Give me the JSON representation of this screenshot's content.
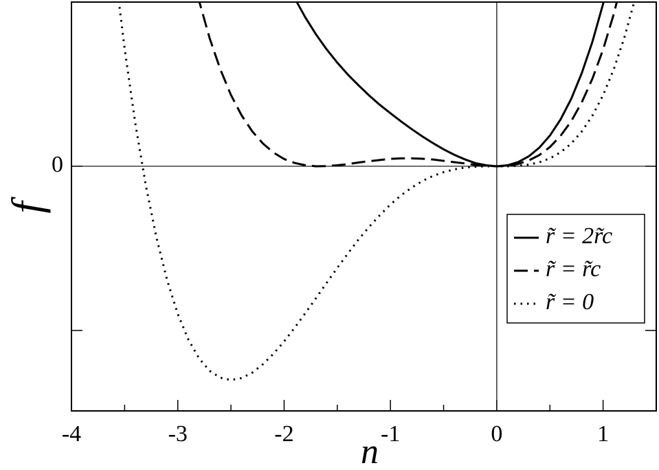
{
  "chart_data": {
    "type": "line",
    "x_label": "n",
    "y_label": "f",
    "x": [
      -3.6,
      -3.5,
      -3.4,
      -3.3,
      -3.2,
      -3.1,
      -3.0,
      -2.9,
      -2.8,
      -2.7,
      -2.6,
      -2.5,
      -2.4,
      -2.3,
      -2.2,
      -2.1,
      -2.0,
      -1.9,
      -1.8,
      -1.7,
      -1.6,
      -1.5,
      -1.4,
      -1.3,
      -1.2,
      -1.1,
      -1.0,
      -0.9,
      -0.8,
      -0.7,
      -0.6,
      -0.5,
      -0.4,
      -0.3,
      -0.2,
      -0.1,
      0,
      0.1,
      0.2,
      0.3,
      0.4,
      0.5,
      0.6,
      0.7,
      0.8,
      0.9,
      1.0,
      1.1,
      1.2,
      1.3,
      1.4
    ],
    "series": [
      {
        "name": "r̃ = 2r̃c",
        "color": "#000000",
        "dash": "solid",
        "values": [
          null,
          null,
          null,
          null,
          null,
          null,
          null,
          null,
          null,
          null,
          null,
          null,
          null,
          null,
          null,
          null,
          1.155,
          1.023,
          0.906,
          0.803,
          0.712,
          0.631,
          0.558,
          0.493,
          0.431,
          0.374,
          0.323,
          0.273,
          0.226,
          0.182,
          0.141,
          0.103,
          0.07,
          0.042,
          0.019,
          0.006,
          0,
          0.006,
          0.025,
          0.06,
          0.113,
          0.187,
          0.285,
          0.41,
          0.568,
          0.759,
          0.989,
          1.262,
          null,
          null,
          null
        ]
      },
      {
        "name": "r̃ = r̃c",
        "color": "#000000",
        "dash": "dashed",
        "values": [
          null,
          null,
          null,
          null,
          null,
          null,
          null,
          1.28,
          1.008,
          0.779,
          0.59,
          0.434,
          0.31,
          0.213,
          0.139,
          0.083,
          0.044,
          0.02,
          0.006,
          0,
          0.001,
          0.006,
          0.013,
          0.023,
          0.031,
          0.038,
          0.045,
          0.048,
          0.048,
          0.046,
          0.041,
          0.033,
          0.025,
          0.017,
          0.008,
          0.003,
          0,
          0.003,
          0.014,
          0.035,
          0.068,
          0.117,
          0.185,
          0.274,
          0.39,
          0.534,
          0.711,
          0.926,
          1.183,
          null,
          null
        ]
      },
      {
        "name": "r̃ = 0",
        "color": "#000000",
        "dash": "dotted",
        "values": [
          1.246,
          0.716,
          0.263,
          -0.119,
          -0.436,
          -0.694,
          -0.9,
          -1.056,
          -1.17,
          -1.246,
          -1.288,
          -1.302,
          -1.29,
          -1.257,
          -1.206,
          -1.142,
          -1.067,
          -0.983,
          -0.894,
          -0.803,
          -0.71,
          -0.619,
          -0.531,
          -0.446,
          -0.369,
          -0.298,
          -0.233,
          -0.177,
          -0.13,
          -0.09,
          -0.059,
          -0.036,
          -0.019,
          -0.008,
          -0.003,
          0,
          0,
          0,
          0.003,
          0.01,
          0.024,
          0.048,
          0.085,
          0.138,
          0.212,
          0.309,
          0.433,
          0.59,
          0.783,
          1.018,
          1.299
        ]
      }
    ],
    "xlim": [
      -4,
      1.5
    ],
    "ylim": [
      -1.49,
      1
    ],
    "xticks": [
      -4,
      -3,
      -2,
      -1,
      0,
      1
    ],
    "xminor_ticks": [
      -3.5,
      -2.5,
      -1.5,
      -0.5,
      0.5
    ],
    "yticks": [
      {
        "value": -1,
        "label": null
      },
      0
    ],
    "zero_lines": true,
    "grid": false,
    "legend_loc": "center right"
  }
}
